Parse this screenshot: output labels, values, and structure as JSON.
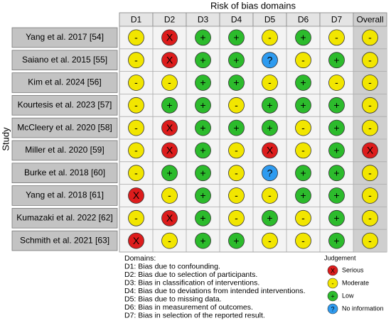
{
  "header": {
    "title": "Risk of bias domains",
    "y_label": "Study"
  },
  "columns": [
    "D1",
    "D2",
    "D3",
    "D4",
    "D5",
    "D6",
    "D7",
    "Overall"
  ],
  "rows": [
    {
      "study": "Yang et al. 2017 [54]",
      "cells": [
        "-",
        "X",
        "+",
        "+",
        "-",
        "+",
        "-",
        "-"
      ]
    },
    {
      "study": "Saiano et al. 2015 [55]",
      "cells": [
        "-",
        "X",
        "+",
        "+",
        "?",
        "-",
        "+",
        "-"
      ]
    },
    {
      "study": "Kim et al. 2024 [56]",
      "cells": [
        "-",
        "-",
        "+",
        "+",
        "-",
        "+",
        "-",
        "-"
      ]
    },
    {
      "study": "Kourtesis et al. 2023 [57]",
      "cells": [
        "-",
        "+",
        "+",
        "-",
        "+",
        "+",
        "+",
        "-"
      ]
    },
    {
      "study": "McCleery et al. 2020 [58]",
      "cells": [
        "-",
        "X",
        "+",
        "+",
        "+",
        "-",
        "+",
        "-"
      ]
    },
    {
      "study": "Miller et al. 2020 [59]",
      "cells": [
        "-",
        "X",
        "+",
        "-",
        "X",
        "-",
        "+",
        "X"
      ]
    },
    {
      "study": "Burke et al. 2018 [60]",
      "cells": [
        "-",
        "+",
        "+",
        "-",
        "?",
        "+",
        "+",
        "-"
      ]
    },
    {
      "study": "Yang et al. 2018 [61]",
      "cells": [
        "X",
        "-",
        "+",
        "-",
        "-",
        "+",
        "+",
        "-"
      ]
    },
    {
      "study": "Kumazaki et al. 2022 [62]",
      "cells": [
        "-",
        "X",
        "+",
        "-",
        "+",
        "-",
        "+",
        "-"
      ]
    },
    {
      "study": "Schmith et al. 2021 [63]",
      "cells": [
        "X",
        "-",
        "+",
        "+",
        "-",
        "-",
        "+",
        "-"
      ]
    }
  ],
  "domains": {
    "title": "Domains:",
    "items": [
      "D1: Bias due to confounding.",
      "D2: Bias due to selection of participants.",
      "D3: Bias in classification of interventions.",
      "D4: Bias due to deviations from intended interventions.",
      "D5: Bias due to missing data.",
      "D6: Bias in measurement of outcomes.",
      "D7: Bias in selection of the reported result."
    ]
  },
  "judgement": {
    "title": "Judgement",
    "items": [
      {
        "symbol": "X",
        "label": "Serious",
        "color": "#dd1c1c"
      },
      {
        "symbol": "-",
        "label": "Moderate",
        "color": "#f2e600"
      },
      {
        "symbol": "+",
        "label": "Low",
        "color": "#2cbb2c"
      },
      {
        "symbol": "?",
        "label": "No information",
        "color": "#2e9bf0"
      }
    ]
  }
}
